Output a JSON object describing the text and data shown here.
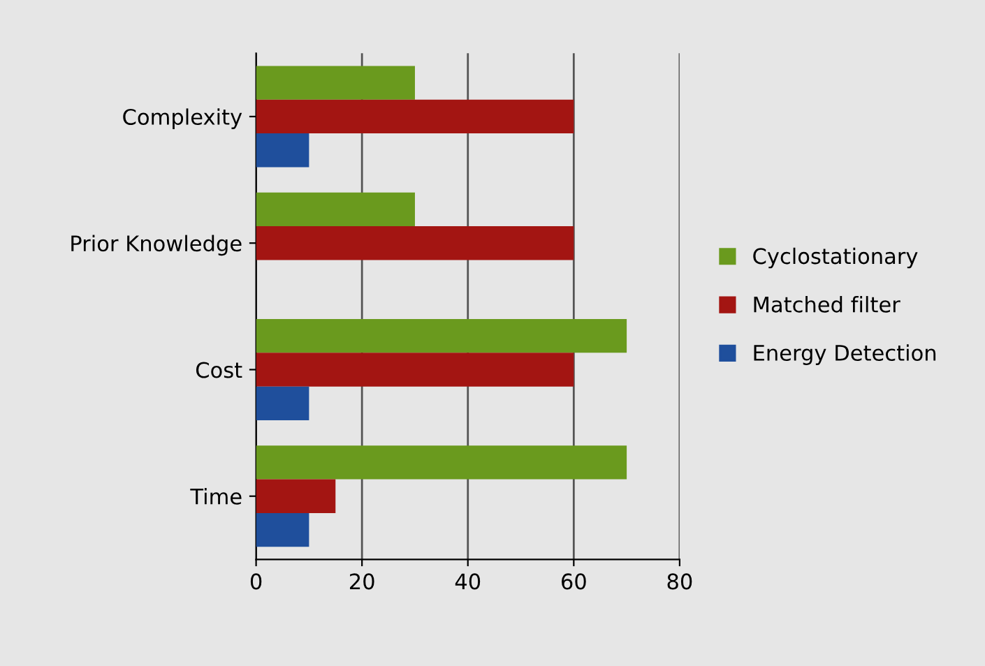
{
  "chart_data": {
    "type": "bar",
    "orientation": "horizontal",
    "categories": [
      "Complexity",
      "Prior Knowledge",
      "Cost",
      "Time"
    ],
    "series": [
      {
        "name": "Cyclostationary",
        "color": "#6a9a1e",
        "values": [
          30,
          30,
          70,
          70
        ]
      },
      {
        "name": "Matched filter",
        "color": "#a31512",
        "values": [
          60,
          60,
          60,
          15
        ]
      },
      {
        "name": "Energy Detection",
        "color": "#1f4f9c",
        "values": [
          10,
          0,
          10,
          10
        ]
      }
    ],
    "xlim": [
      0,
      80
    ],
    "xticks": [
      0,
      20,
      40,
      60,
      80
    ],
    "grid": "x",
    "legend": "right"
  }
}
